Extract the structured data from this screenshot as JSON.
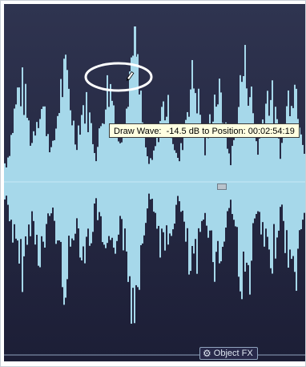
{
  "tooltip": {
    "label": "Draw Wave:",
    "level": "-14.5 dB",
    "connector": "to Position:",
    "position": "00:02:54:19"
  },
  "object_fx": {
    "label": "Object FX",
    "icon": "gear-icon"
  },
  "colors": {
    "background_top": "#2f3450",
    "background_bottom": "#1b1d35",
    "waveform": "#a6d8ea",
    "center_line": "#c8e9f5",
    "highlight_ellipse": "#ffffff",
    "tooltip_bg": "#ffffe1"
  }
}
